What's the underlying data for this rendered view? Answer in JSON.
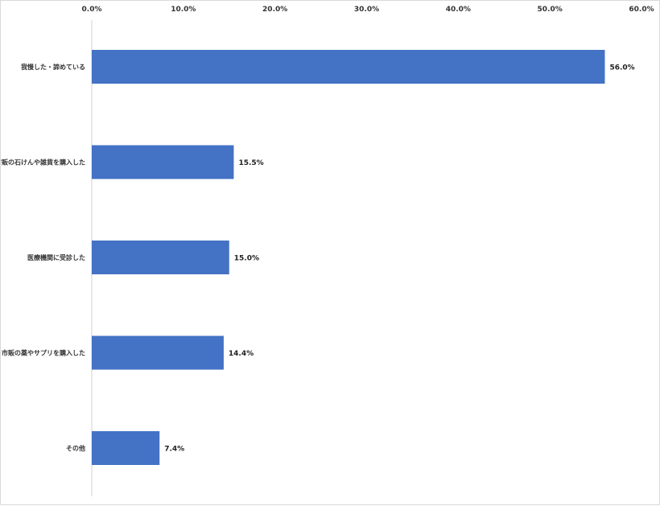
{
  "chart_data": {
    "type": "bar",
    "orientation": "horizontal",
    "categories": [
      "我慢した・諦めている",
      "市販の石けんや雑貨を購入した",
      "医療機関に受診した",
      "市販の薬やサプリを購入した",
      "その他"
    ],
    "values": [
      56.0,
      15.5,
      15.0,
      14.4,
      7.4
    ],
    "value_labels": [
      "56.0%",
      "15.5%",
      "15.0%",
      "14.4%",
      "7.4%"
    ],
    "xlim": [
      0,
      60
    ],
    "ticks": [
      0,
      10,
      20,
      30,
      40,
      50,
      60
    ],
    "tick_labels": [
      "0.0%",
      "10.0%",
      "20.0%",
      "30.0%",
      "40.0%",
      "50.0%",
      "60.0%"
    ],
    "axis_position": "top",
    "grid": false,
    "bar_color": "#4472c4"
  }
}
